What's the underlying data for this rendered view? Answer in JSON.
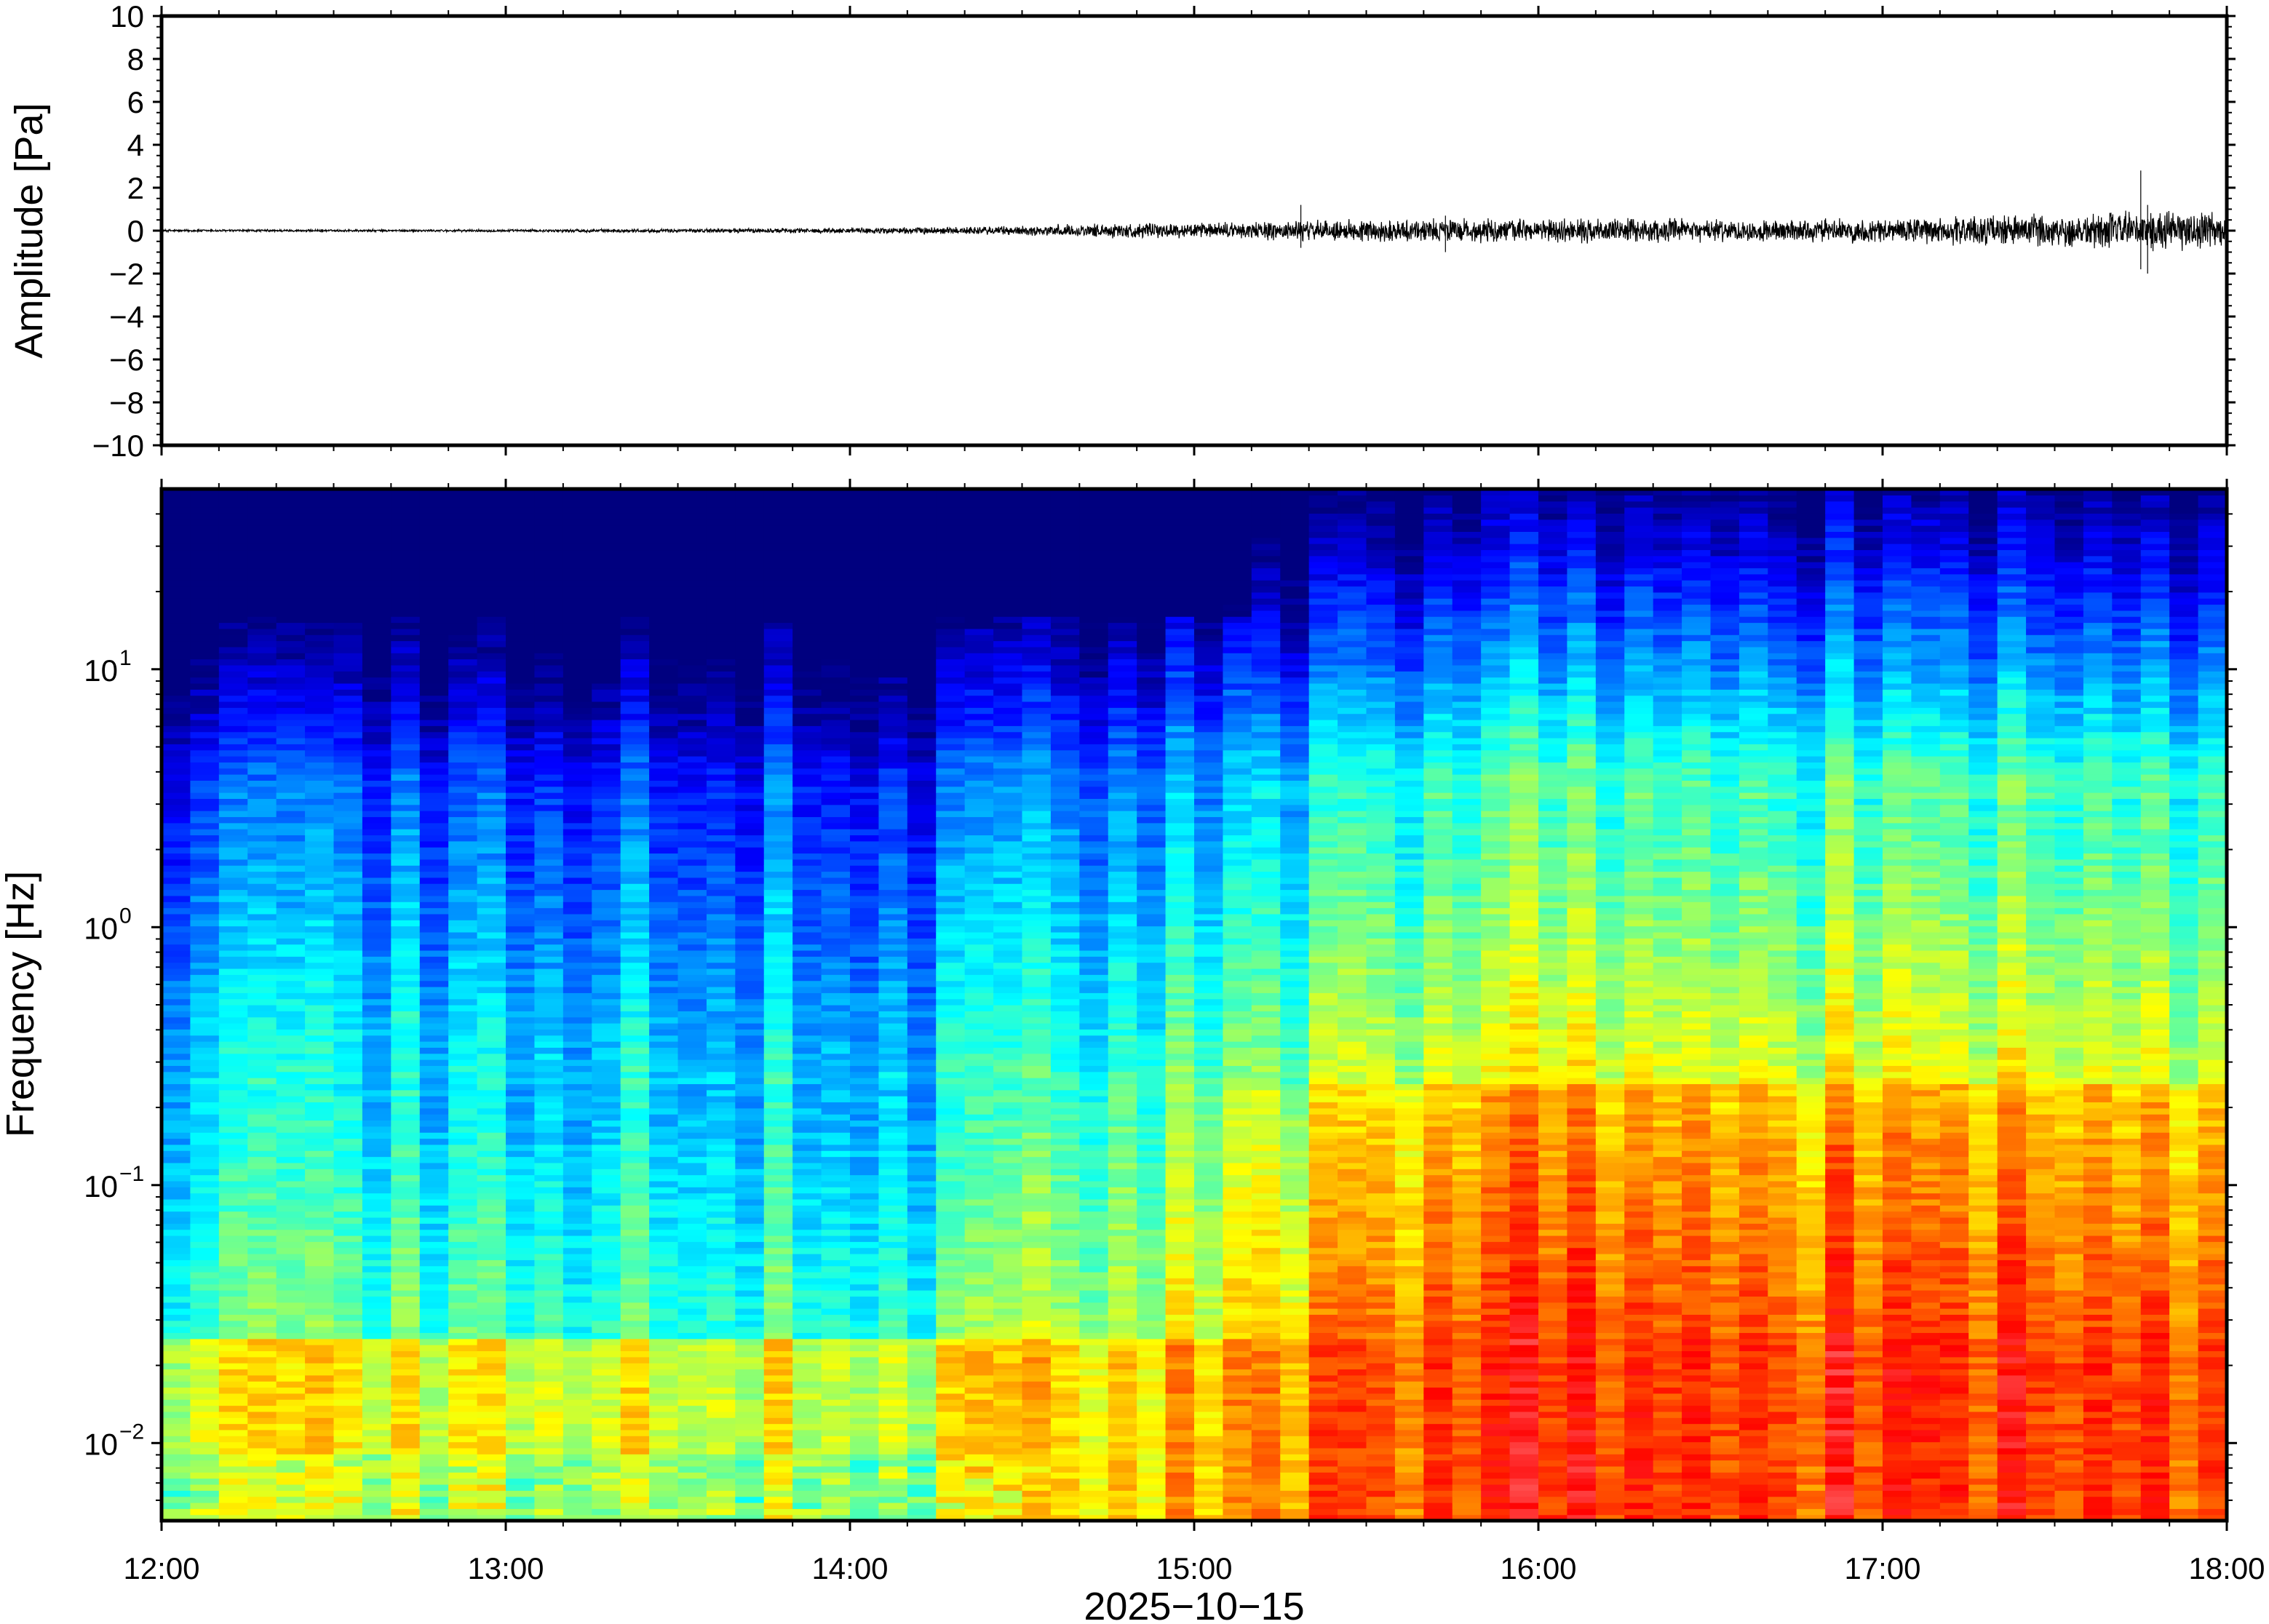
{
  "chart_data": [
    {
      "type": "line",
      "panel": "waveform",
      "ylabel": "Amplitude [Pa]",
      "ylim": [
        -10,
        10
      ],
      "yticks": [
        -10,
        -8,
        -6,
        -4,
        -2,
        0,
        2,
        4,
        6,
        8,
        10
      ],
      "ytick_labels": [
        "−10",
        "−8",
        "−6",
        "−4",
        "−2",
        "0",
        "2",
        "4",
        "6",
        "8",
        "10"
      ],
      "xlim": [
        "12:00",
        "18:00"
      ],
      "envelope": {
        "hours": [
          12.0,
          12.5,
          13.0,
          13.5,
          14.0,
          14.25,
          14.5,
          14.75,
          15.0,
          15.25,
          15.5,
          15.75,
          16.0,
          16.25,
          16.5,
          16.75,
          17.0,
          17.25,
          17.5,
          17.75,
          18.0
        ],
        "half_amplitude_pa": [
          0.05,
          0.05,
          0.05,
          0.08,
          0.12,
          0.15,
          0.2,
          0.3,
          0.3,
          0.4,
          0.45,
          0.5,
          0.45,
          0.5,
          0.45,
          0.45,
          0.5,
          0.6,
          0.7,
          0.8,
          0.8
        ]
      },
      "spikes": [
        {
          "hour": 15.31,
          "min": -0.8,
          "max": 1.2
        },
        {
          "hour": 15.73,
          "min": -1.0,
          "max": 0.7
        },
        {
          "hour": 17.75,
          "min": -1.8,
          "max": 2.8
        },
        {
          "hour": 17.77,
          "min": -2.0,
          "max": 1.2
        }
      ]
    },
    {
      "type": "heatmap",
      "panel": "spectrogram",
      "ylabel": "Frequency [Hz]",
      "yscale": "log",
      "ylim_hz": [
        0.005,
        50
      ],
      "yticks": [
        {
          "value": 0.01,
          "base": "10",
          "exp": "−2"
        },
        {
          "value": 0.1,
          "base": "10",
          "exp": "−1"
        },
        {
          "value": 1,
          "base": "10",
          "exp": "0"
        },
        {
          "value": 10,
          "base": "10",
          "exp": "1"
        }
      ],
      "colormap": "jet",
      "xlabel": "2025−10−15",
      "xticks": [
        "12:00",
        "13:00",
        "14:00",
        "15:00",
        "16:00",
        "17:00",
        "18:00"
      ],
      "time_columns": 72,
      "frequency_rows": 170,
      "colors": [
        "#00007f",
        "#0000ff",
        "#007fff",
        "#00ffff",
        "#7fff7f",
        "#ffff00",
        "#ff7f00",
        "#ff0000",
        "#ff9090"
      ]
    }
  ]
}
